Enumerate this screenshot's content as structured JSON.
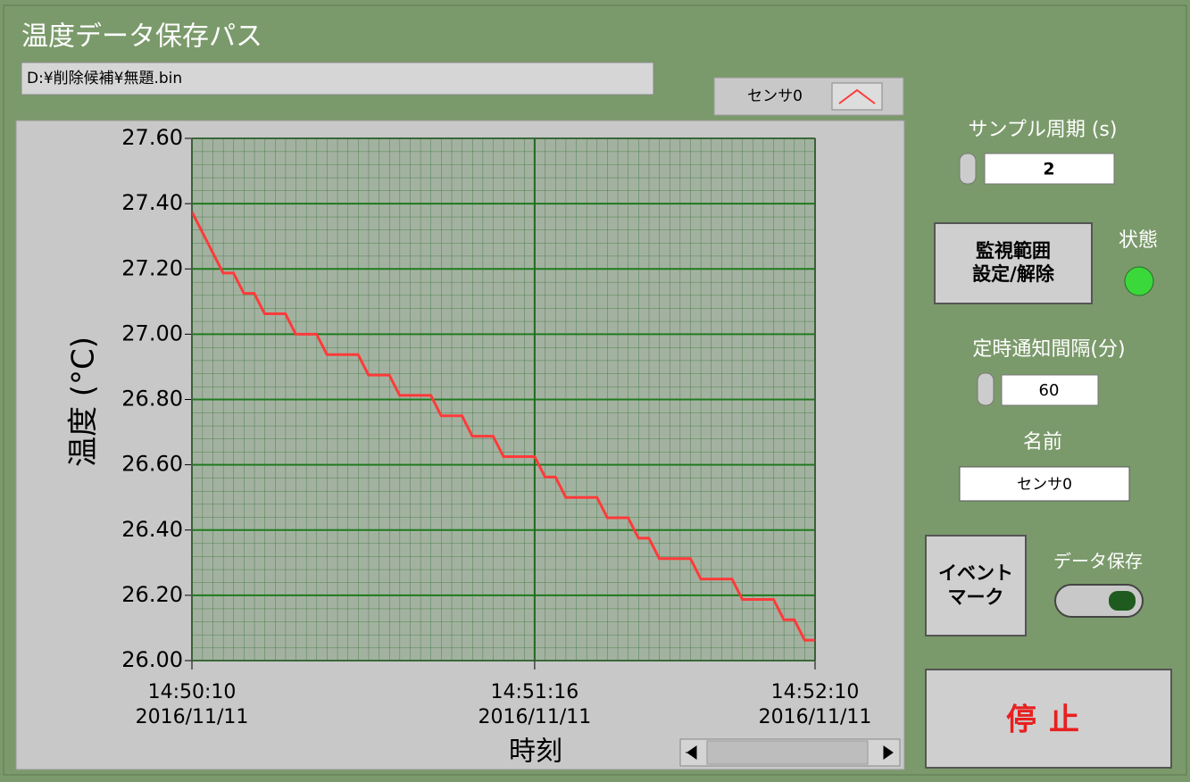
{
  "panel": {
    "path_label": "温度データ保存パス",
    "path_value": "D:¥削除候補¥無題.bin"
  },
  "chart_data": {
    "type": "line",
    "y_label": "温度 (°C)",
    "x_label": "時刻",
    "x": [
      "2016/11/11 14:50:10",
      "2016/11/11 14:50:12",
      "2016/11/11 14:50:14",
      "2016/11/11 14:50:16",
      "2016/11/11 14:50:18",
      "2016/11/11 14:50:20",
      "2016/11/11 14:50:22",
      "2016/11/11 14:50:24",
      "2016/11/11 14:50:26",
      "2016/11/11 14:50:28",
      "2016/11/11 14:50:30",
      "2016/11/11 14:50:32",
      "2016/11/11 14:50:34",
      "2016/11/11 14:50:36",
      "2016/11/11 14:50:38",
      "2016/11/11 14:50:40",
      "2016/11/11 14:50:42",
      "2016/11/11 14:50:44",
      "2016/11/11 14:50:46",
      "2016/11/11 14:50:48",
      "2016/11/11 14:50:50",
      "2016/11/11 14:50:52",
      "2016/11/11 14:50:54",
      "2016/11/11 14:50:56",
      "2016/11/11 14:50:58",
      "2016/11/11 14:51:00",
      "2016/11/11 14:51:02",
      "2016/11/11 14:51:04",
      "2016/11/11 14:51:06",
      "2016/11/11 14:51:08",
      "2016/11/11 14:51:10",
      "2016/11/11 14:51:12",
      "2016/11/11 14:51:14",
      "2016/11/11 14:51:16",
      "2016/11/11 14:51:18",
      "2016/11/11 14:51:20",
      "2016/11/11 14:51:22",
      "2016/11/11 14:51:24",
      "2016/11/11 14:51:26",
      "2016/11/11 14:51:28",
      "2016/11/11 14:51:30",
      "2016/11/11 14:51:32",
      "2016/11/11 14:51:34",
      "2016/11/11 14:51:36",
      "2016/11/11 14:51:38",
      "2016/11/11 14:51:40",
      "2016/11/11 14:51:42",
      "2016/11/11 14:51:44",
      "2016/11/11 14:51:46",
      "2016/11/11 14:51:48",
      "2016/11/11 14:51:50",
      "2016/11/11 14:51:52",
      "2016/11/11 14:51:54",
      "2016/11/11 14:51:56",
      "2016/11/11 14:51:58",
      "2016/11/11 14:52:00",
      "2016/11/11 14:52:02",
      "2016/11/11 14:52:04",
      "2016/11/11 14:52:06",
      "2016/11/11 14:52:08",
      "2016/11/11 14:52:10"
    ],
    "series": [
      {
        "name": "センサ0",
        "color": "#ff3a3a",
        "values": [
          27.375,
          27.3125,
          27.25,
          27.1875,
          27.1875,
          27.125,
          27.125,
          27.0625,
          27.0625,
          27.0625,
          27.0,
          27.0,
          27.0,
          26.9375,
          26.9375,
          26.9375,
          26.9375,
          26.875,
          26.875,
          26.875,
          26.8125,
          26.8125,
          26.8125,
          26.8125,
          26.75,
          26.75,
          26.75,
          26.6875,
          26.6875,
          26.6875,
          26.625,
          26.625,
          26.625,
          26.625,
          26.5625,
          26.5625,
          26.5,
          26.5,
          26.5,
          26.5,
          26.4375,
          26.4375,
          26.4375,
          26.375,
          26.375,
          26.3125,
          26.3125,
          26.3125,
          26.3125,
          26.25,
          26.25,
          26.25,
          26.25,
          26.1875,
          26.1875,
          26.1875,
          26.1875,
          26.125,
          26.125,
          26.0625,
          26.0625
        ]
      }
    ],
    "xlim": [
      "2016/11/11 14:50:10",
      "2016/11/11 14:52:10"
    ],
    "xticks": [
      {
        "value": "2016/11/11 14:50:10",
        "label": [
          "14:50:10",
          "2016/11/11"
        ]
      },
      {
        "value": "2016/11/11 14:51:16",
        "label": [
          "14:51:16",
          "2016/11/11"
        ]
      },
      {
        "value": "2016/11/11 14:52:10",
        "label": [
          "14:52:10",
          "2016/11/11"
        ]
      }
    ],
    "ylim": [
      26,
      27.6
    ],
    "yticks": [
      {
        "value": 26,
        "label": "26.00"
      },
      {
        "value": 26.2,
        "label": "26.20"
      },
      {
        "value": 26.4,
        "label": "26.40"
      },
      {
        "value": 26.6,
        "label": "26.60"
      },
      {
        "value": 26.8,
        "label": "26.80"
      },
      {
        "value": 27,
        "label": "27.00"
      },
      {
        "value": 27.2,
        "label": "27.20"
      },
      {
        "value": 27.4,
        "label": "27.40"
      },
      {
        "value": 27.6,
        "label": "27.60"
      }
    ],
    "grid": true
  },
  "controls": {
    "sample_label": "サンプル周期 (s)",
    "sample_value": "2",
    "monitor_button": [
      "監視範囲",
      "設定/解除"
    ],
    "status_label": "状態",
    "interval_label": "定時通知間隔(分)",
    "interval_value": "60",
    "name_label": "名前",
    "name_value": "センサ0",
    "event_button": [
      "イベント",
      "マーク"
    ],
    "save_label": "データ保存",
    "stop_button": "停止"
  }
}
